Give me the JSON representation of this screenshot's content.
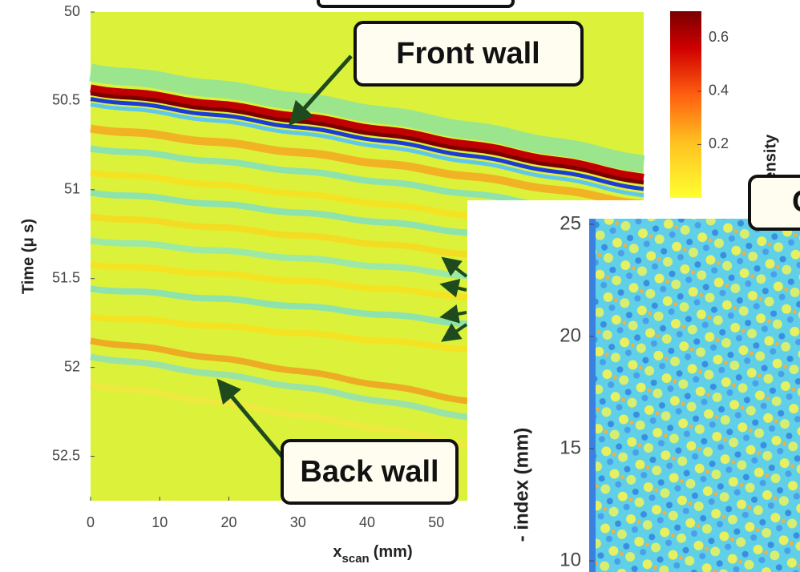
{
  "chart_data": [
    {
      "type": "image",
      "xlabel": "x",
      "xlabel_sub": "scan",
      "xlabel_unit": "(mm)",
      "ylabel": "Time (μ s)",
      "xlim": [
        0,
        80
      ],
      "xticks": [
        0,
        10,
        20,
        30,
        40,
        50
      ],
      "ylim": [
        50,
        52.75
      ],
      "yticks": [
        50,
        50.5,
        51,
        51.5,
        52,
        52.5
      ],
      "annotations": [
        "Front wall",
        "Back wall"
      ],
      "colorbar": {
        "label": "Intensity",
        "lim": [
          0,
          0.7
        ],
        "ticks": [
          0.2,
          0.4,
          0.6
        ]
      }
    },
    {
      "type": "image",
      "title": "C",
      "ylabel": "- index (mm)",
      "ylim": [
        9.5,
        25.25
      ],
      "yticks": [
        10,
        15,
        20,
        25
      ]
    }
  ]
}
